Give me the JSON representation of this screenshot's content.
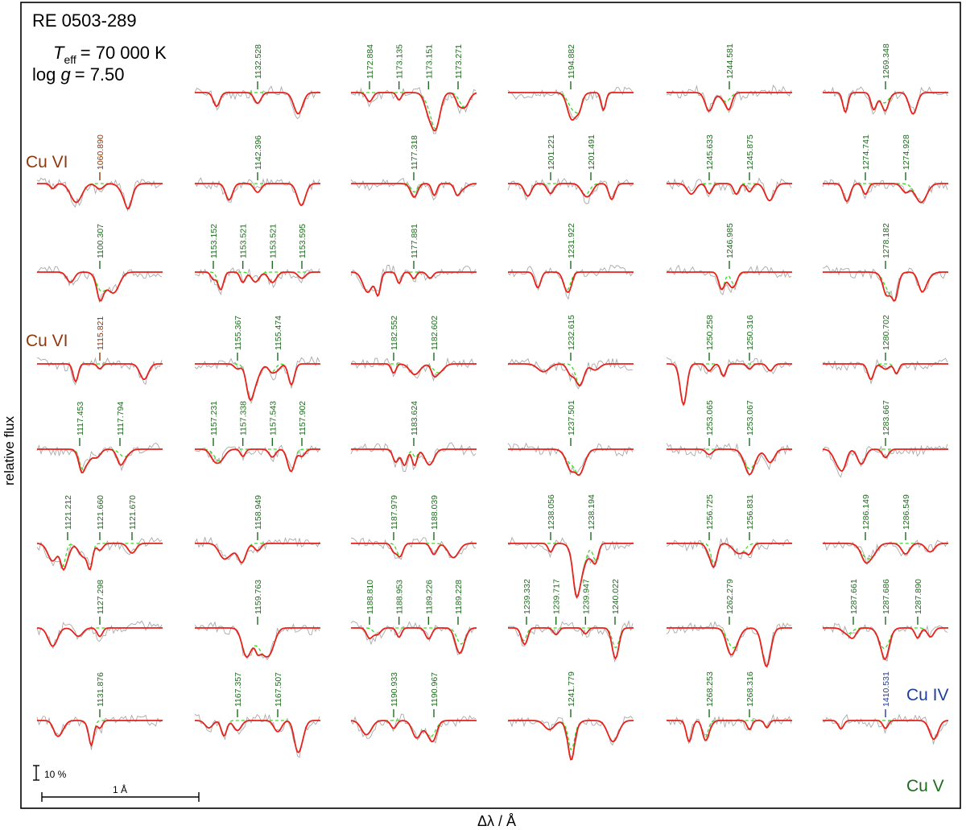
{
  "figure": {
    "star": "RE 0503-289",
    "teff_sym": "T",
    "teff_sub": "eff",
    "teff_val": "= 70 000 K",
    "logg_pre": "log ",
    "logg_sym": "g",
    "logg_val": "= 7.50",
    "ylabel": "relative flux",
    "xlabel": "Δλ / Å",
    "scale_flux": "10 %",
    "scale_wave": "1 Å",
    "ion_cu4": "Cu IV",
    "ion_cu5": "Cu V",
    "ion_cu6": "Cu VI"
  },
  "colors": {
    "observation": "#a9a9a9",
    "model": "#e8211a",
    "model_without": "#33dd22",
    "cu5_marker": "#1e6b1e",
    "cu6_marker": "#8b3a0f",
    "cu4_marker": "#1f3f9b",
    "frame": "#000000"
  },
  "chart_data": {
    "type": "line",
    "description_of_series": [
      "observation",
      "model",
      "model_without_copper"
    ],
    "columns": [
      [
        {
          "lines": [
            {
              "wl": "1060.890",
              "ion": "Cu VI"
            }
          ],
          "ion_label": "Cu VI"
        },
        {
          "lines": [
            {
              "wl": "1100.307",
              "ion": "Cu V"
            }
          ]
        },
        {
          "lines": [
            {
              "wl": "1115.821",
              "ion": "Cu VI"
            }
          ],
          "ion_label": "Cu VI"
        },
        {
          "lines": [
            {
              "wl": "1117.453",
              "ion": "Cu V"
            },
            {
              "wl": "1117.794",
              "ion": "Cu V"
            }
          ]
        },
        {
          "lines": [
            {
              "wl": "1121.212",
              "ion": "Cu V"
            },
            {
              "wl": "1121.660",
              "ion": "Cu V"
            },
            {
              "wl": "1121.670",
              "ion": "Cu V"
            }
          ]
        },
        {
          "lines": [
            {
              "wl": "1127.298",
              "ion": "Cu V"
            }
          ]
        },
        {
          "lines": [
            {
              "wl": "1131.876",
              "ion": "Cu V"
            }
          ]
        }
      ],
      [
        {
          "lines": [
            {
              "wl": "1132.528",
              "ion": "Cu V"
            }
          ]
        },
        {
          "lines": [
            {
              "wl": "1142.396",
              "ion": "Cu V"
            }
          ]
        },
        {
          "lines": [
            {
              "wl": "1153.152",
              "ion": "Cu V"
            },
            {
              "wl": "1153.521",
              "ion": "Cu V"
            },
            {
              "wl": "1153.521",
              "ion": "Cu V"
            },
            {
              "wl": "1153.595",
              "ion": "Cu V"
            }
          ]
        },
        {
          "lines": [
            {
              "wl": "1155.367",
              "ion": "Cu V"
            },
            {
              "wl": "1155.474",
              "ion": "Cu V"
            }
          ]
        },
        {
          "lines": [
            {
              "wl": "1157.231",
              "ion": "Cu V"
            },
            {
              "wl": "1157.338",
              "ion": "Cu V"
            },
            {
              "wl": "1157.543",
              "ion": "Cu V"
            },
            {
              "wl": "1157.902",
              "ion": "Cu V"
            }
          ]
        },
        {
          "lines": [
            {
              "wl": "1158.949",
              "ion": "Cu V"
            }
          ]
        },
        {
          "lines": [
            {
              "wl": "1159.763",
              "ion": "Cu V"
            }
          ]
        },
        {
          "lines": [
            {
              "wl": "1167.357",
              "ion": "Cu V"
            },
            {
              "wl": "1167.507",
              "ion": "Cu V"
            }
          ]
        }
      ],
      [
        {
          "lines": [
            {
              "wl": "1172.884",
              "ion": "Cu V"
            },
            {
              "wl": "1173.135",
              "ion": "Cu V"
            },
            {
              "wl": "1173.151",
              "ion": "Cu V"
            },
            {
              "wl": "1173.271",
              "ion": "Cu V"
            }
          ]
        },
        {
          "lines": [
            {
              "wl": "1177.318",
              "ion": "Cu V"
            }
          ]
        },
        {
          "lines": [
            {
              "wl": "1177.881",
              "ion": "Cu V"
            }
          ]
        },
        {
          "lines": [
            {
              "wl": "1182.552",
              "ion": "Cu V"
            },
            {
              "wl": "1182.602",
              "ion": "Cu V"
            }
          ]
        },
        {
          "lines": [
            {
              "wl": "1183.624",
              "ion": "Cu V"
            }
          ]
        },
        {
          "lines": [
            {
              "wl": "1187.979",
              "ion": "Cu V"
            },
            {
              "wl": "1188.039",
              "ion": "Cu V"
            }
          ]
        },
        {
          "lines": [
            {
              "wl": "1188.810",
              "ion": "Cu V"
            },
            {
              "wl": "1188.953",
              "ion": "Cu V"
            },
            {
              "wl": "1189.226",
              "ion": "Cu V"
            },
            {
              "wl": "1189.228",
              "ion": "Cu V"
            }
          ]
        },
        {
          "lines": [
            {
              "wl": "1190.933",
              "ion": "Cu V"
            },
            {
              "wl": "1190.967",
              "ion": "Cu V"
            }
          ]
        }
      ],
      [
        {
          "lines": [
            {
              "wl": "1194.882",
              "ion": "Cu V"
            }
          ]
        },
        {
          "lines": [
            {
              "wl": "1201.221",
              "ion": "Cu V"
            },
            {
              "wl": "1201.491",
              "ion": "Cu V"
            }
          ]
        },
        {
          "lines": [
            {
              "wl": "1231.922",
              "ion": "Cu V"
            }
          ]
        },
        {
          "lines": [
            {
              "wl": "1232.615",
              "ion": "Cu V"
            }
          ]
        },
        {
          "lines": [
            {
              "wl": "1237.501",
              "ion": "Cu V"
            }
          ]
        },
        {
          "lines": [
            {
              "wl": "1238.056",
              "ion": "Cu V"
            },
            {
              "wl": "1238.194",
              "ion": "Cu V"
            }
          ]
        },
        {
          "lines": [
            {
              "wl": "1239.332",
              "ion": "Cu V"
            },
            {
              "wl": "1239.717",
              "ion": "Cu V"
            },
            {
              "wl": "1239.947",
              "ion": "Cu V"
            },
            {
              "wl": "1240.022",
              "ion": "Cu V"
            }
          ]
        },
        {
          "lines": [
            {
              "wl": "1241.779",
              "ion": "Cu V"
            }
          ]
        }
      ],
      [
        {
          "lines": [
            {
              "wl": "1244.581",
              "ion": "Cu V"
            }
          ]
        },
        {
          "lines": [
            {
              "wl": "1245.633",
              "ion": "Cu V"
            },
            {
              "wl": "1245.875",
              "ion": "Cu V"
            }
          ]
        },
        {
          "lines": [
            {
              "wl": "1246.985",
              "ion": "Cu V"
            }
          ]
        },
        {
          "lines": [
            {
              "wl": "1250.258",
              "ion": "Cu V"
            },
            {
              "wl": "1250.316",
              "ion": "Cu V"
            }
          ]
        },
        {
          "lines": [
            {
              "wl": "1253.065",
              "ion": "Cu V"
            },
            {
              "wl": "1253.067",
              "ion": "Cu V"
            }
          ]
        },
        {
          "lines": [
            {
              "wl": "1256.725",
              "ion": "Cu V"
            },
            {
              "wl": "1256.831",
              "ion": "Cu V"
            }
          ]
        },
        {
          "lines": [
            {
              "wl": "1262.279",
              "ion": "Cu V"
            }
          ]
        },
        {
          "lines": [
            {
              "wl": "1268.253",
              "ion": "Cu V"
            },
            {
              "wl": "1268.316",
              "ion": "Cu V"
            }
          ]
        }
      ],
      [
        {
          "lines": [
            {
              "wl": "1269.348",
              "ion": "Cu V"
            }
          ]
        },
        {
          "lines": [
            {
              "wl": "1274.741",
              "ion": "Cu V"
            },
            {
              "wl": "1274.928",
              "ion": "Cu V"
            }
          ]
        },
        {
          "lines": [
            {
              "wl": "1278.182",
              "ion": "Cu V"
            }
          ]
        },
        {
          "lines": [
            {
              "wl": "1280.702",
              "ion": "Cu V"
            }
          ]
        },
        {
          "lines": [
            {
              "wl": "1283.667",
              "ion": "Cu V"
            }
          ]
        },
        {
          "lines": [
            {
              "wl": "1286.149",
              "ion": "Cu V"
            },
            {
              "wl": "1286.549",
              "ion": "Cu V"
            }
          ]
        },
        {
          "lines": [
            {
              "wl": "1287.661",
              "ion": "Cu V"
            },
            {
              "wl": "1287.686",
              "ion": "Cu V"
            },
            {
              "wl": "1287.890",
              "ion": "Cu V"
            }
          ]
        },
        {
          "lines": [
            {
              "wl": "1410.531",
              "ion": "Cu IV"
            }
          ]
        }
      ]
    ]
  }
}
